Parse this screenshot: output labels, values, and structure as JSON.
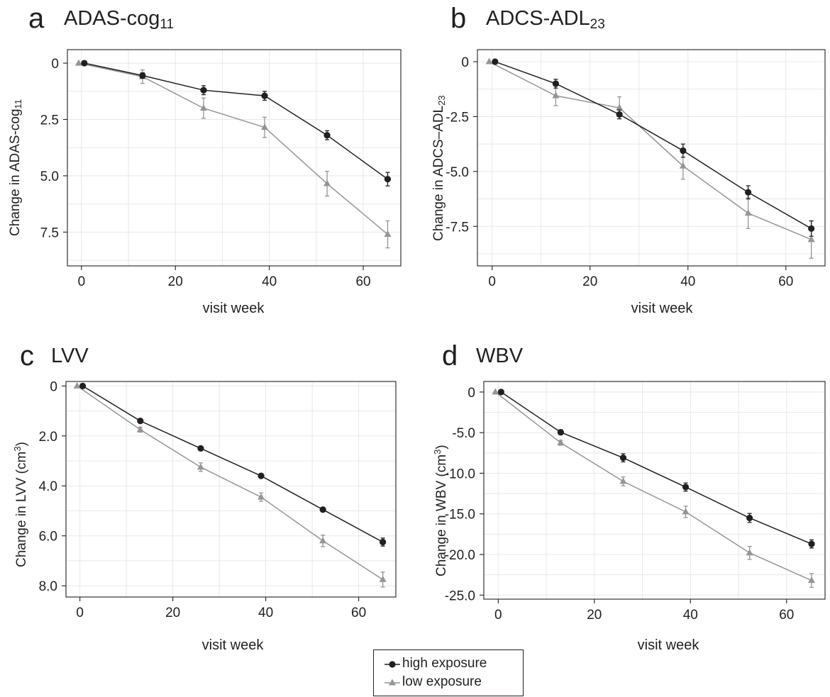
{
  "chart_data": [
    {
      "type": "line",
      "panel_letter": "a",
      "title": {
        "main": "ADAS-cog",
        "sub": "11"
      },
      "ylabel": {
        "main": "Change in ADAS-cog",
        "sub": "11",
        "sup": "",
        "tail": ""
      },
      "xlabel": "visit week",
      "xlim": [
        -3,
        68
      ],
      "ylim": [
        9.0,
        -0.6
      ],
      "y_reversed": true,
      "xticks": [
        0,
        20,
        40,
        60
      ],
      "yticks": [
        0,
        2.5,
        5.0,
        7.5
      ],
      "ytick_labels": [
        "0",
        "2.5",
        "5.0",
        "7.5"
      ],
      "grid": true,
      "series": [
        {
          "name": "high exposure",
          "x": [
            0.6,
            13,
            26,
            39,
            52.3,
            65.2
          ],
          "y": [
            0.0,
            0.55,
            1.2,
            1.45,
            3.2,
            5.15
          ],
          "err": [
            0.0,
            0.12,
            0.2,
            0.2,
            0.2,
            0.3
          ]
        },
        {
          "name": "low exposure",
          "x": [
            -0.6,
            13,
            26,
            39,
            52.3,
            65.2
          ],
          "y": [
            0.0,
            0.6,
            2.0,
            2.85,
            5.35,
            7.6
          ],
          "err": [
            0.0,
            0.3,
            0.45,
            0.45,
            0.55,
            0.6
          ]
        }
      ]
    },
    {
      "type": "line",
      "panel_letter": "b",
      "title": {
        "main": "ADCS-ADL",
        "sub": "23"
      },
      "ylabel": {
        "main": "Change in ADCS–ADL",
        "sub": "23",
        "sup": "",
        "tail": ""
      },
      "xlabel": "visit week",
      "xlim": [
        -3,
        68
      ],
      "ylim": [
        -9.3,
        0.55
      ],
      "y_reversed": false,
      "xticks": [
        0,
        20,
        40,
        60
      ],
      "yticks": [
        0,
        -2.5,
        -5.0,
        -7.5
      ],
      "ytick_labels": [
        "0",
        "-2.5",
        "-5.0",
        "-7.5"
      ],
      "grid": true,
      "series": [
        {
          "name": "high exposure",
          "x": [
            0.6,
            13,
            26,
            39,
            52.3,
            65.2
          ],
          "y": [
            0.0,
            -1.0,
            -2.4,
            -4.05,
            -5.95,
            -7.6
          ],
          "err": [
            0.0,
            0.2,
            0.2,
            0.3,
            0.3,
            0.35
          ]
        },
        {
          "name": "low exposure",
          "x": [
            -0.6,
            13,
            26,
            39,
            52.3,
            65.2
          ],
          "y": [
            0.0,
            -1.55,
            -2.1,
            -4.75,
            -6.9,
            -8.1
          ],
          "err": [
            0.0,
            0.45,
            0.5,
            0.6,
            0.7,
            0.85
          ]
        }
      ]
    },
    {
      "type": "line",
      "panel_letter": "c",
      "title": {
        "main": "LVV",
        "sub": ""
      },
      "ylabel": {
        "main": "Change in LVV (cm",
        "sub": "",
        "sup": "3",
        "tail": ")"
      },
      "xlabel": "visit week",
      "xlim": [
        -3,
        68
      ],
      "ylim": [
        8.45,
        -0.18
      ],
      "y_reversed": true,
      "xticks": [
        0,
        20,
        40,
        60
      ],
      "yticks": [
        0,
        2.0,
        4.0,
        6.0,
        8.0
      ],
      "ytick_labels": [
        "0",
        "2.0",
        "4.0",
        "6.0",
        "8.0"
      ],
      "grid": true,
      "series": [
        {
          "name": "high exposure",
          "x": [
            0.6,
            13,
            26,
            39,
            52.3,
            65.2
          ],
          "y": [
            0.0,
            1.4,
            2.5,
            3.6,
            4.95,
            6.25
          ],
          "err": [
            0.0,
            0.05,
            0.06,
            0.07,
            0.08,
            0.16
          ]
        },
        {
          "name": "low exposure",
          "x": [
            -0.6,
            13,
            26,
            39,
            52.3,
            65.2
          ],
          "y": [
            0.0,
            1.75,
            3.25,
            4.45,
            6.2,
            7.75
          ],
          "err": [
            0.0,
            0.1,
            0.17,
            0.17,
            0.23,
            0.3
          ]
        }
      ]
    },
    {
      "type": "line",
      "panel_letter": "d",
      "title": {
        "main": "WBV",
        "sub": ""
      },
      "ylabel": {
        "main": "Change in WBV (cm",
        "sub": "",
        "sup": "3",
        "tail": ")"
      },
      "xlabel": "visit week",
      "xlim": [
        -3,
        68
      ],
      "ylim": [
        -25.5,
        1.3
      ],
      "y_reversed": false,
      "xticks": [
        0,
        20,
        40,
        60
      ],
      "yticks": [
        0,
        -5.0,
        -10.0,
        -15.0,
        -20.0,
        -25.0
      ],
      "ytick_labels": [
        "0",
        "-5.0",
        "-10.0",
        "-15.0",
        "-20.0",
        "-25.0"
      ],
      "grid": true,
      "series": [
        {
          "name": "high exposure",
          "x": [
            0.6,
            13,
            26,
            39,
            52.3,
            65.2
          ],
          "y": [
            0.0,
            -4.95,
            -8.1,
            -11.7,
            -15.5,
            -18.7
          ],
          "err": [
            0.0,
            0.3,
            0.5,
            0.5,
            0.55,
            0.5
          ]
        },
        {
          "name": "low exposure",
          "x": [
            -0.6,
            13,
            26,
            39,
            52.3,
            65.2
          ],
          "y": [
            0.0,
            -6.25,
            -11.0,
            -14.75,
            -19.8,
            -23.2
          ],
          "err": [
            0.0,
            0.3,
            0.55,
            0.7,
            0.8,
            0.85
          ]
        }
      ]
    }
  ],
  "legend": {
    "placement": "bottom-center",
    "items": [
      "high exposure",
      "low exposure"
    ]
  },
  "colors": {
    "high_exposure": "#231f20",
    "low_exposure": "#939598",
    "axis": "#231f20",
    "grid": "#e8e8e8"
  }
}
